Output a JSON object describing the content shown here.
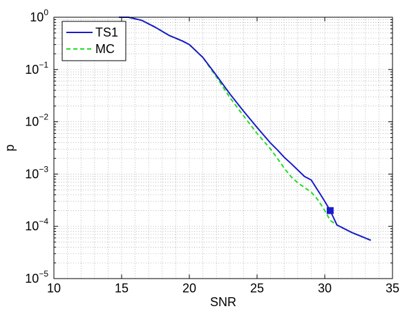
{
  "chart_data": {
    "type": "line",
    "title": "",
    "xlabel": "SNR",
    "ylabel": "p",
    "xlim": [
      10,
      35
    ],
    "ylim": [
      1e-05,
      1
    ],
    "yscale": "log",
    "grid": "on (major and minor, dotted)",
    "legend_position": "top-left",
    "x_ticks": [
      "10",
      "15",
      "20",
      "25",
      "30",
      "35"
    ],
    "y_ticks": [
      {
        "base": "10",
        "exp": "0",
        "value": 1
      },
      {
        "base": "10",
        "exp": "−1",
        "value": 0.1
      },
      {
        "base": "10",
        "exp": "−2",
        "value": 0.01
      },
      {
        "base": "10",
        "exp": "−3",
        "value": 0.001
      },
      {
        "base": "10",
        "exp": "−4",
        "value": 0.0001
      },
      {
        "base": "10",
        "exp": "−5",
        "value": 1e-05
      }
    ],
    "series": [
      {
        "name": "TS1",
        "color": "#1a1acc",
        "style": "solid",
        "x": [
          14.8,
          15.5,
          16.5,
          17.5,
          18.5,
          19.5,
          20.0,
          21.0,
          22.0,
          23.0,
          24.0,
          25.0,
          26.0,
          26.5,
          27.0,
          27.5,
          28.0,
          28.5,
          29.0,
          29.3,
          29.7,
          30.0,
          30.4,
          30.9,
          32.0,
          33.4
        ],
        "y": [
          1.0,
          1.0,
          0.87,
          0.64,
          0.45,
          0.35,
          0.3,
          0.17,
          0.077,
          0.034,
          0.016,
          0.0078,
          0.0039,
          0.0029,
          0.0021,
          0.0016,
          0.0012,
          0.0009,
          0.00077,
          0.00058,
          0.0004,
          0.0003,
          0.0002,
          0.000106,
          7.6e-05,
          5.4e-05
        ]
      },
      {
        "name": "MC",
        "color": "#22dd22",
        "style": "dashed",
        "x": [
          14.8,
          15.5,
          16.5,
          17.5,
          18.5,
          19.5,
          20.0,
          21.0,
          22.0,
          23.0,
          24.0,
          25.0,
          26.0,
          26.5,
          27.0,
          27.5,
          28.0,
          29.0,
          29.5,
          30.0,
          30.4,
          30.9,
          32.0,
          33.4
        ],
        "y": [
          1.0,
          1.0,
          0.87,
          0.64,
          0.45,
          0.35,
          0.3,
          0.17,
          0.072,
          0.029,
          0.013,
          0.006,
          0.003,
          0.002,
          0.0013,
          0.0009,
          0.00068,
          0.00045,
          0.00032,
          0.0002,
          0.00013,
          0.000106,
          7.6e-05,
          5.4e-05
        ]
      }
    ],
    "marker": {
      "x": 30.4,
      "y": 0.0002,
      "shape": "square",
      "color": "#1a1acc"
    }
  }
}
